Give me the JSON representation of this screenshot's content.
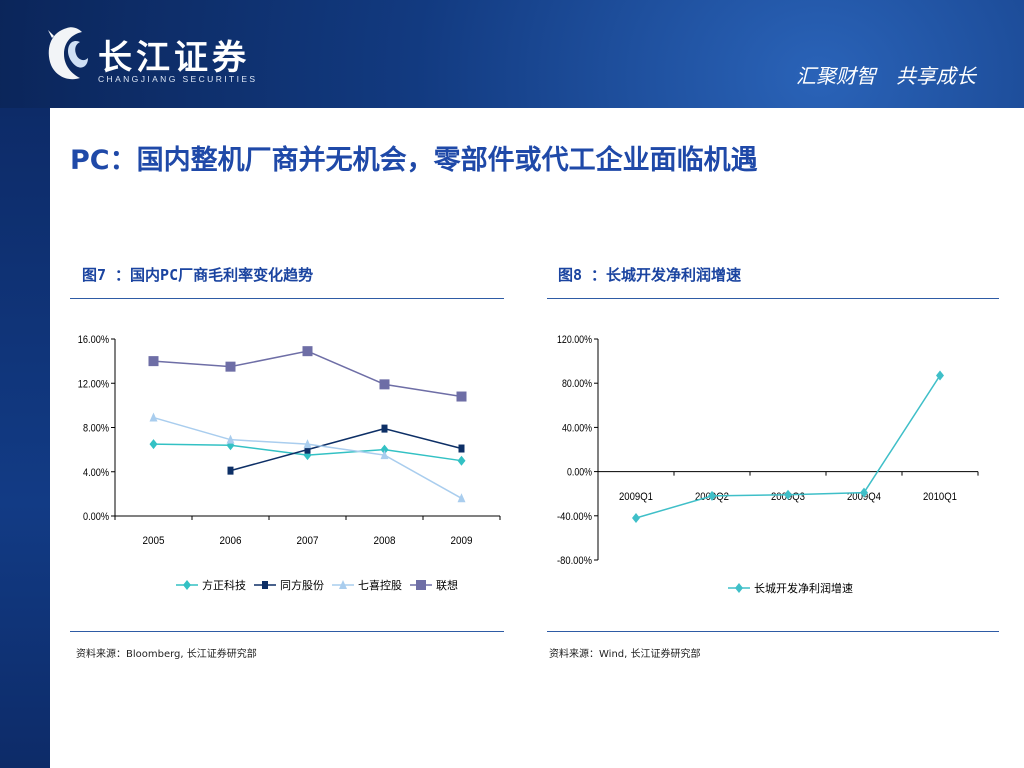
{
  "header": {
    "logo_text": "长江证券",
    "logo_subtitle": "CHANGJIANG SECURITIES",
    "slogan": "汇聚财智　共享成长"
  },
  "page_title": "PC：国内整机厂商并无机会，零部件或代工企业面临机遇",
  "figures": [
    {
      "title": "图7 ：国内PC厂商毛利率变化趋势",
      "source": "资料来源：Bloomberg, 长江证券研究部"
    },
    {
      "title": "图8 ：长城开发净利润增速",
      "source": "资料来源：Wind, 长江证券研究部"
    }
  ],
  "colors": {
    "title_blue": "#1f49a8",
    "fangzheng": "#33c1c4",
    "tongfang": "#0d2f66",
    "qixi": "#a9cdee",
    "lianxiang": "#6e6ea6",
    "changcheng": "#3fbfc8"
  },
  "chart_data": [
    {
      "type": "line",
      "title": "图7 ：国内PC厂商毛利率变化趋势",
      "categories": [
        "2005",
        "2006",
        "2007",
        "2008",
        "2009"
      ],
      "yticks": [
        "0.00%",
        "4.00%",
        "8.00%",
        "12.00%",
        "16.00%"
      ],
      "ylim": [
        0,
        16
      ],
      "grid": false,
      "legend": "bottom",
      "series": [
        {
          "name": "方正科技",
          "values": [
            6.5,
            6.4,
            5.5,
            6.0,
            5.0
          ],
          "color": "#33c1c4",
          "marker": "diamond"
        },
        {
          "name": "同方股份",
          "values": [
            null,
            4.1,
            6.0,
            7.9,
            6.1
          ],
          "color": "#0d2f66",
          "marker": "square-small"
        },
        {
          "name": "七喜控股",
          "values": [
            8.9,
            6.9,
            6.5,
            5.5,
            1.6
          ],
          "color": "#a9cdee",
          "marker": "triangle"
        },
        {
          "name": "联想",
          "values": [
            14.0,
            13.5,
            14.9,
            11.9,
            10.8
          ],
          "color": "#6e6ea6",
          "marker": "square"
        }
      ]
    },
    {
      "type": "line",
      "title": "图8 ：长城开发净利润增速",
      "categories": [
        "2009Q1",
        "2009Q2",
        "2009Q3",
        "2009Q4",
        "2010Q1"
      ],
      "yticks": [
        "-80.00%",
        "-40.00%",
        "0.00%",
        "40.00%",
        "80.00%",
        "120.00%"
      ],
      "ylim": [
        -80,
        120
      ],
      "grid": false,
      "legend": "bottom",
      "series": [
        {
          "name": "长城开发净利润增速",
          "values": [
            -42,
            -22,
            -21,
            -19,
            87
          ],
          "color": "#3fbfc8",
          "marker": "diamond"
        }
      ]
    }
  ]
}
